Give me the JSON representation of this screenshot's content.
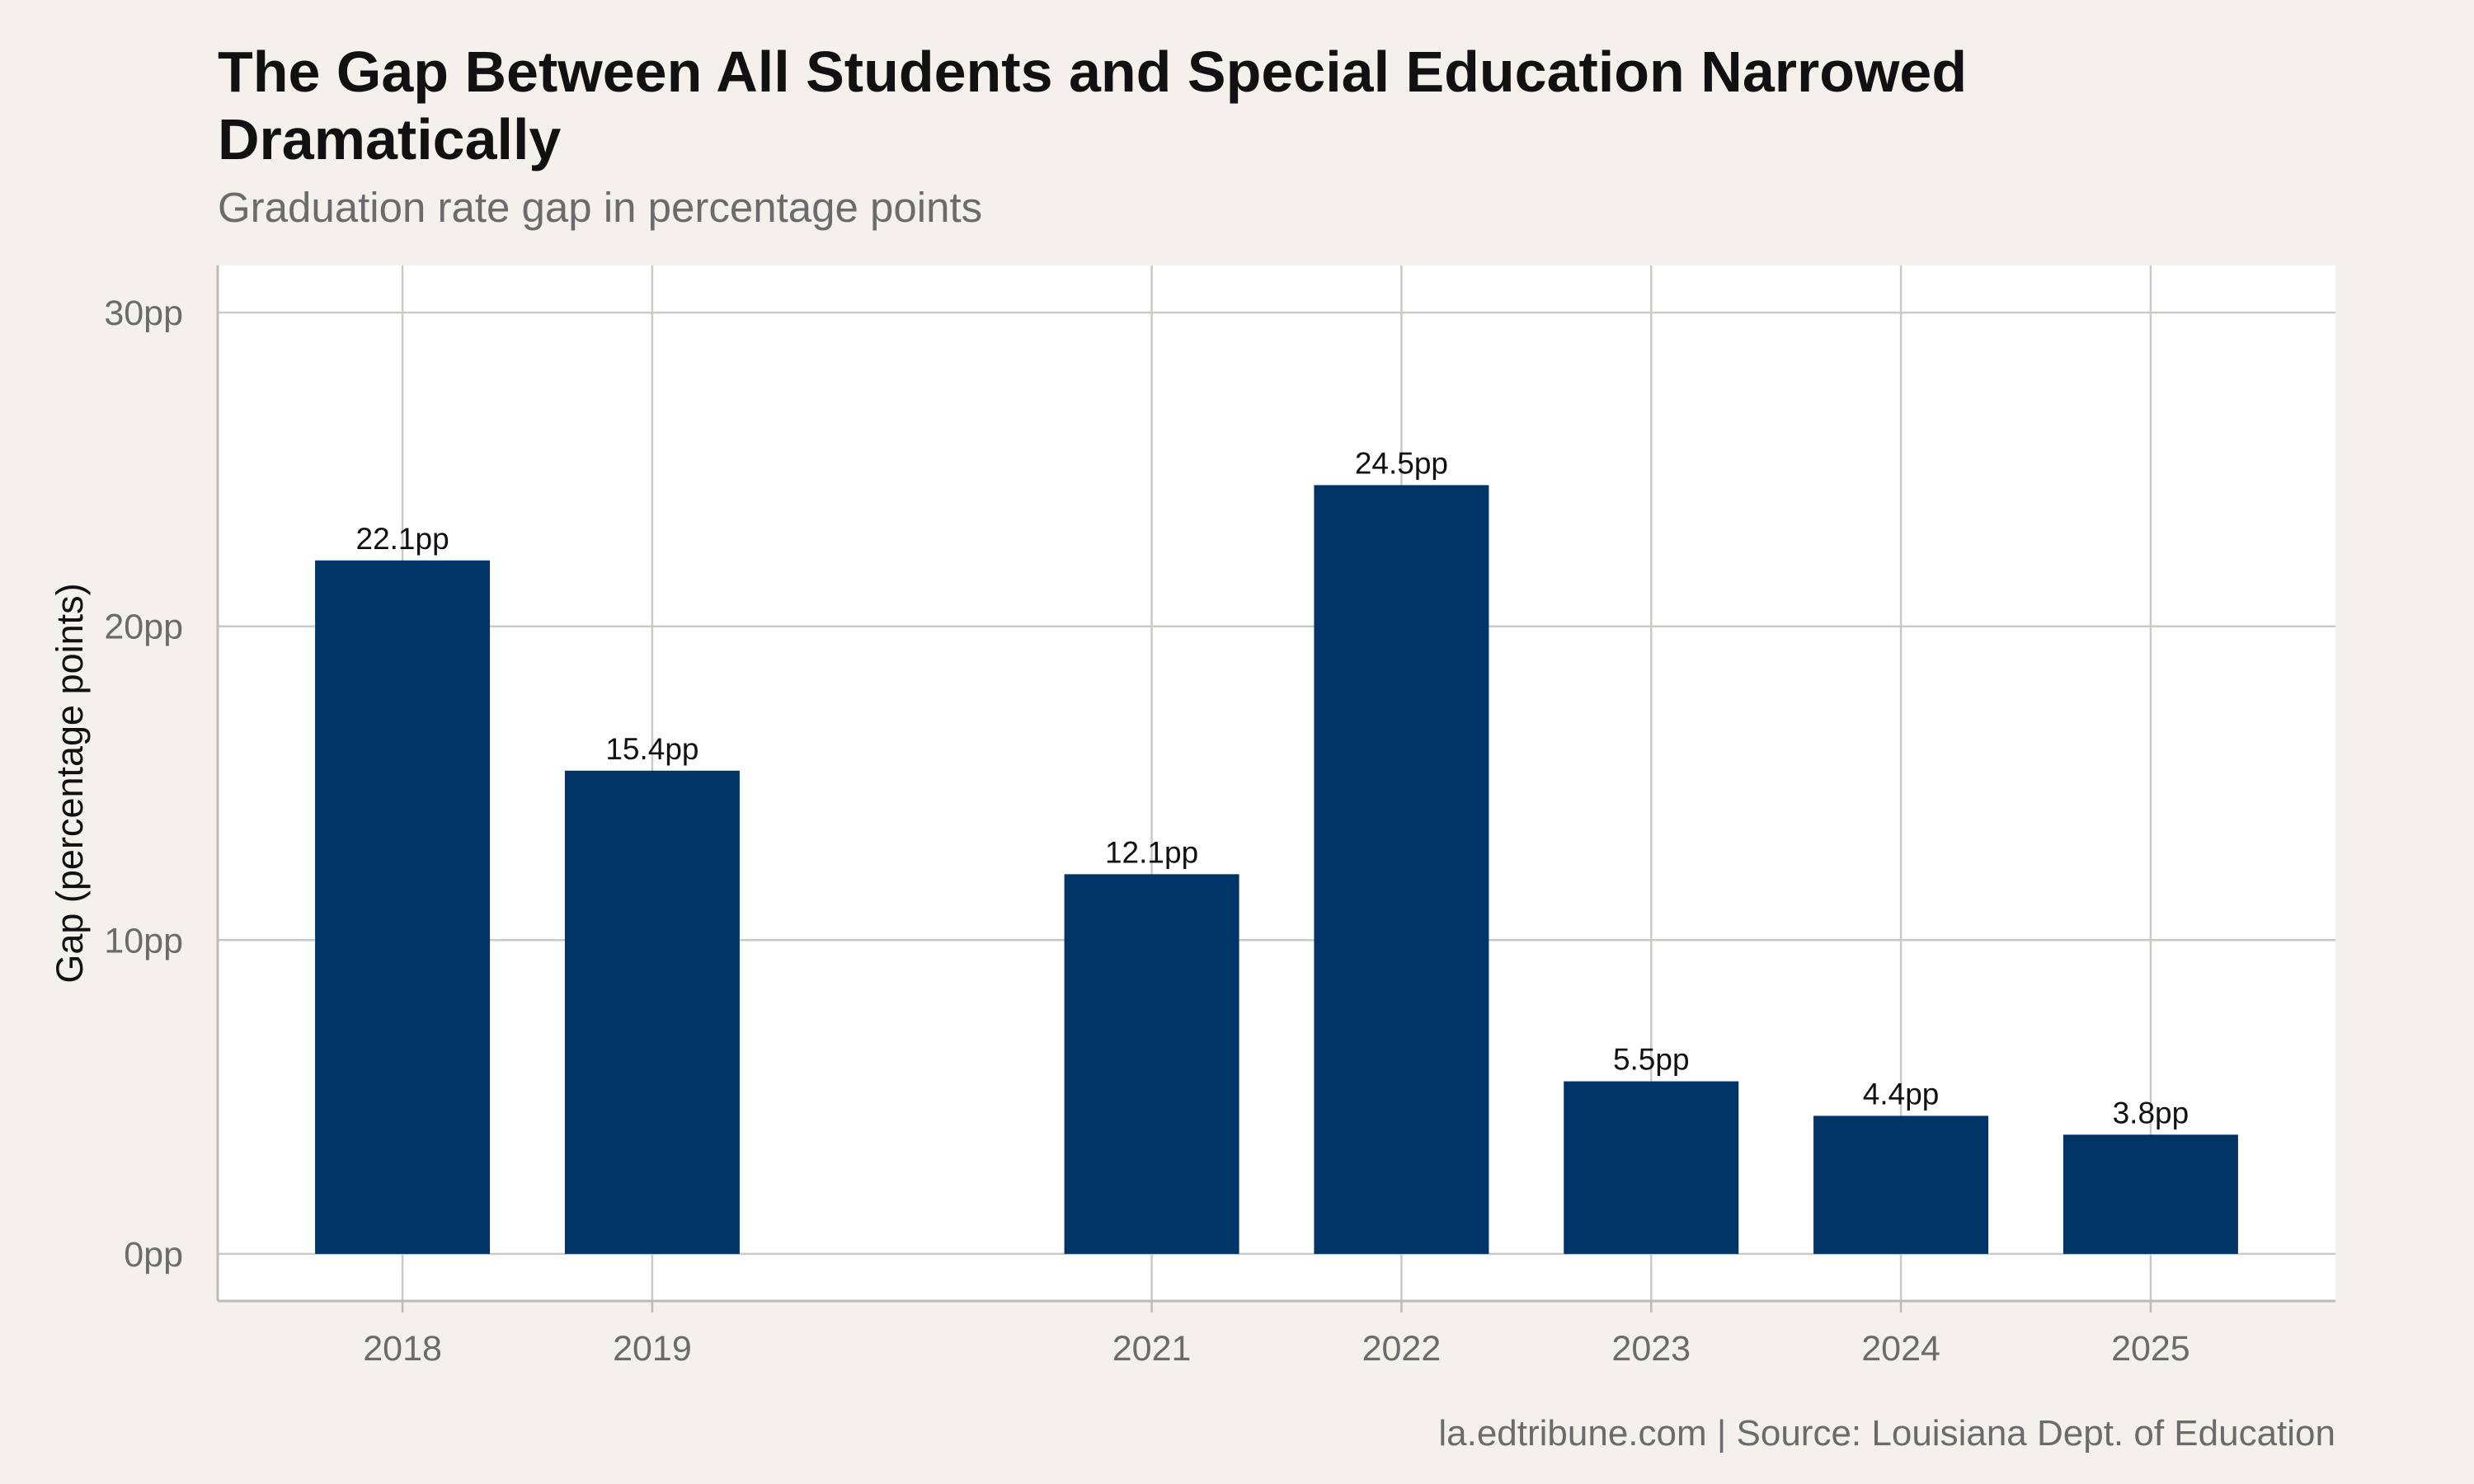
{
  "chart_data": {
    "type": "bar",
    "title": "The Gap Between All Students and Special Education Narrowed Dramatically",
    "subtitle": "Graduation rate gap in percentage points",
    "caption": "la.edtribune.com | Source: Louisiana Dept. of Education",
    "ylabel": "Gap (percentage points)",
    "xlabel": "",
    "x": [
      2018,
      2019,
      2021,
      2022,
      2023,
      2024,
      2025
    ],
    "values": [
      22.1,
      15.4,
      12.1,
      24.5,
      5.5,
      4.4,
      3.8
    ],
    "data_labels": [
      "22.1pp",
      "15.4pp",
      "12.1pp",
      "24.5pp",
      "5.5pp",
      "4.4pp",
      "3.8pp"
    ],
    "x_ticks": [
      "2018",
      "2019",
      "2021",
      "2022",
      "2023",
      "2024",
      "2025"
    ],
    "y_ticks": [
      0,
      10,
      20,
      30
    ],
    "y_tick_labels": [
      "0pp",
      "10pp",
      "20pp",
      "30pp"
    ],
    "xlim": [
      2017.26,
      2025.74
    ],
    "ylim": [
      -1.5,
      31.5
    ],
    "grid": true,
    "colors": {
      "bar": "#003366",
      "panel": "#ffffff",
      "background": "#f4f1ec"
    }
  }
}
